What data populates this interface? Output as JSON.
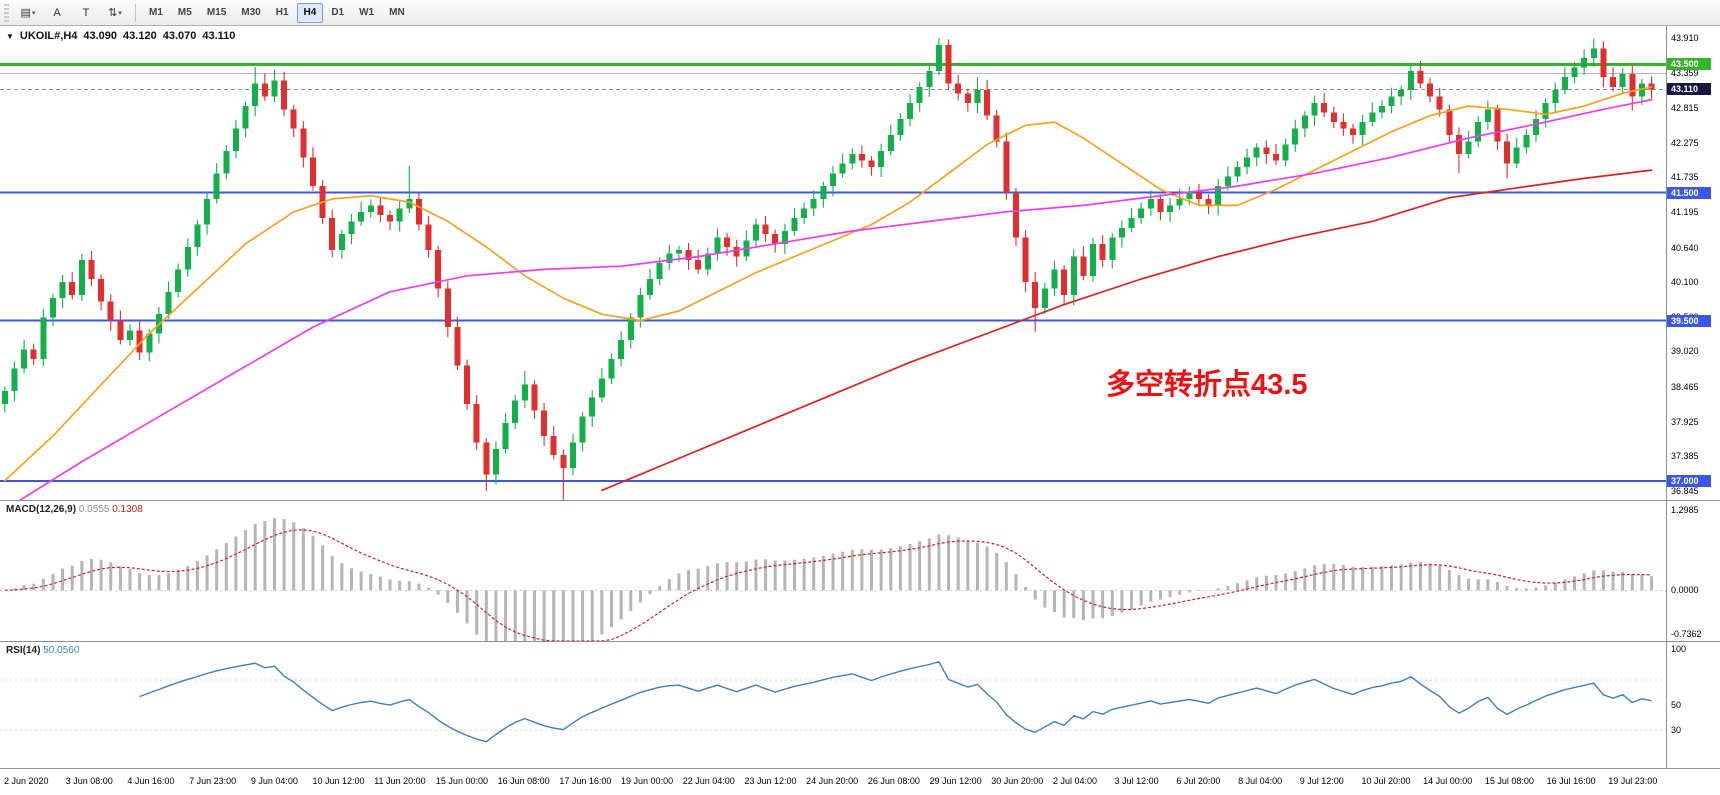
{
  "toolbar": {
    "icons": [
      {
        "name": "chart-objects-icon",
        "glyph": "▤",
        "caret": true
      },
      {
        "name": "text-annotation-icon",
        "glyph": "A",
        "caret": false
      },
      {
        "name": "text-label-icon",
        "glyph": "T",
        "caret": false
      },
      {
        "name": "scale-arrows-icon",
        "glyph": "⇅",
        "caret": true
      }
    ],
    "timeframes": [
      {
        "label": "M1",
        "active": false
      },
      {
        "label": "M5",
        "active": false
      },
      {
        "label": "M15",
        "active": false
      },
      {
        "label": "M30",
        "active": false
      },
      {
        "label": "H1",
        "active": false
      },
      {
        "label": "H4",
        "active": true
      },
      {
        "label": "D1",
        "active": false
      },
      {
        "label": "W1",
        "active": false
      },
      {
        "label": "MN",
        "active": false
      }
    ]
  },
  "chart_header": {
    "collapse_icon": "▼",
    "symbol": "UKOIL#,H4",
    "open": "43.090",
    "high": "43.120",
    "low": "43.070",
    "close": "43.110"
  },
  "macd_panel": {
    "label": "MACD(12,26,9)",
    "value_main": "0.0555",
    "value_signal": "0.1308",
    "axis": [
      "1.2985",
      "0.0000",
      "-0.7362"
    ]
  },
  "rsi_panel": {
    "label": "RSI(14)",
    "value": "50.0560",
    "axis": [
      "100",
      "50",
      "30"
    ]
  },
  "style": {
    "up_color": "#12b04a",
    "down_color": "#e12e2e",
    "ma_fast_color": "#f5a31a",
    "ma_mid_color": "#ee3cee",
    "ma_slow_color": "#e02020",
    "hline_blue": "#3a57e8",
    "hline_green": "#35b52b",
    "badge_dark": "#17173f",
    "macd_hist_color": "#b5b5b5",
    "macd_signal_color": "#d42020",
    "rsi_line_color": "#3f7fc1",
    "annotation_color": "#ee1111"
  },
  "chart_data": {
    "type": "candlestick",
    "symbol": "UKOIL#",
    "timeframe": "H4",
    "current": {
      "open": 43.09,
      "high": 43.12,
      "low": 43.07,
      "close": 43.11
    },
    "price_min": 36.7,
    "price_max": 44.1,
    "price_axis_ticks": [
      "43.910",
      "43.359",
      "42.815",
      "42.275",
      "41.735",
      "41.195",
      "40.640",
      "40.100",
      "39.560",
      "39.020",
      "38.465",
      "37.925",
      "37.385",
      "36.845"
    ],
    "price_badges": [
      {
        "text": "43.500",
        "value": 43.5,
        "type": "green"
      },
      {
        "text": "43.110",
        "value": 43.11,
        "type": "dark"
      },
      {
        "text": "41.500",
        "value": 41.5,
        "type": "blue"
      },
      {
        "text": "39.500",
        "value": 39.5,
        "type": "blue"
      },
      {
        "text": "37.000",
        "value": 37.0,
        "type": "blue"
      }
    ],
    "h_lines": [
      {
        "value": 43.5,
        "color_key": "hline_green",
        "width": 3,
        "dash": ""
      },
      {
        "value": 43.359,
        "color_key": "gray_line",
        "width": 1,
        "dash": ""
      },
      {
        "value": 43.11,
        "color_key": "gray_dash",
        "width": 1,
        "dash": "4,3"
      },
      {
        "value": 41.5,
        "color_key": "hline_blue",
        "width": 2,
        "dash": ""
      },
      {
        "value": 39.5,
        "color_key": "hline_blue",
        "width": 2,
        "dash": ""
      },
      {
        "value": 37.0,
        "color_key": "hline_blue",
        "width": 2,
        "dash": ""
      }
    ],
    "annotation": {
      "text": "多空转折点43.5",
      "x_frac": 0.664,
      "price": 38.35,
      "font_size": 29
    },
    "first_open": 38.2,
    "closes": [
      38.4,
      38.75,
      39.05,
      38.9,
      39.55,
      39.85,
      40.1,
      39.9,
      40.45,
      40.15,
      39.8,
      39.5,
      39.2,
      39.35,
      39.0,
      39.3,
      39.6,
      39.95,
      40.3,
      40.65,
      41.0,
      41.4,
      41.8,
      42.15,
      42.5,
      42.85,
      43.2,
      43.0,
      43.25,
      42.8,
      42.5,
      42.05,
      41.6,
      41.1,
      40.6,
      40.85,
      41.05,
      41.2,
      41.3,
      41.15,
      41.05,
      41.25,
      41.4,
      41.0,
      40.6,
      40.0,
      39.4,
      38.8,
      38.2,
      37.6,
      37.1,
      37.5,
      37.9,
      38.25,
      38.5,
      38.1,
      37.7,
      37.4,
      37.2,
      37.6,
      38.0,
      38.3,
      38.6,
      38.9,
      39.2,
      39.55,
      39.9,
      40.15,
      40.4,
      40.55,
      40.6,
      40.45,
      40.3,
      40.55,
      40.8,
      40.65,
      40.5,
      40.75,
      41.0,
      40.85,
      40.7,
      40.9,
      41.1,
      41.25,
      41.4,
      41.6,
      41.8,
      41.95,
      42.1,
      42.0,
      41.9,
      42.15,
      42.4,
      42.65,
      42.9,
      43.15,
      43.4,
      43.8,
      43.2,
      43.05,
      42.9,
      43.1,
      42.7,
      42.3,
      41.5,
      40.8,
      40.1,
      39.7,
      40.0,
      40.3,
      39.9,
      40.5,
      40.2,
      40.7,
      40.45,
      40.8,
      40.95,
      41.1,
      41.25,
      41.4,
      41.2,
      41.3,
      41.4,
      41.5,
      41.4,
      41.3,
      41.6,
      41.75,
      41.9,
      42.05,
      42.2,
      42.1,
      42.0,
      42.25,
      42.5,
      42.7,
      42.9,
      42.75,
      42.6,
      42.5,
      42.4,
      42.6,
      42.75,
      42.85,
      43.0,
      43.1,
      43.4,
      43.2,
      43.0,
      42.8,
      42.4,
      42.1,
      42.3,
      42.6,
      42.8,
      42.3,
      41.95,
      42.2,
      42.4,
      42.65,
      42.9,
      43.1,
      43.3,
      43.45,
      43.6,
      43.75,
      43.3,
      43.15,
      43.35,
      43.0,
      43.2,
      43.11
    ],
    "wick_overrides": {
      "26": {
        "h": 43.46
      },
      "28": {
        "h": 43.42
      },
      "42": {
        "h": 41.92
      },
      "50": {
        "l": 36.84
      },
      "54": {
        "h": 38.72
      },
      "58": {
        "l": 36.62
      },
      "97": {
        "h": 43.91
      },
      "101": {
        "h": 43.3
      },
      "107": {
        "l": 39.32
      },
      "146": {
        "h": 43.5
      },
      "151": {
        "l": 41.8
      },
      "156": {
        "l": 41.72
      },
      "165": {
        "h": 43.9
      },
      "169": {
        "l": 42.78
      }
    },
    "moving_averages": [
      {
        "name": "ma-fast-orange",
        "color_key": "ma_fast_color",
        "points": [
          [
            0,
            37.0
          ],
          [
            5,
            37.7
          ],
          [
            10,
            38.5
          ],
          [
            15,
            39.3
          ],
          [
            20,
            40.0
          ],
          [
            25,
            40.7
          ],
          [
            30,
            41.2
          ],
          [
            34,
            41.4
          ],
          [
            38,
            41.45
          ],
          [
            42,
            41.35
          ],
          [
            46,
            41.05
          ],
          [
            50,
            40.65
          ],
          [
            54,
            40.2
          ],
          [
            58,
            39.85
          ],
          [
            62,
            39.6
          ],
          [
            66,
            39.5
          ],
          [
            70,
            39.65
          ],
          [
            74,
            39.95
          ],
          [
            78,
            40.25
          ],
          [
            82,
            40.5
          ],
          [
            86,
            40.75
          ],
          [
            90,
            41.0
          ],
          [
            94,
            41.35
          ],
          [
            98,
            41.8
          ],
          [
            102,
            42.25
          ],
          [
            106,
            42.55
          ],
          [
            109,
            42.6
          ],
          [
            112,
            42.35
          ],
          [
            116,
            41.95
          ],
          [
            120,
            41.55
          ],
          [
            124,
            41.3
          ],
          [
            128,
            41.3
          ],
          [
            132,
            41.55
          ],
          [
            136,
            41.85
          ],
          [
            140,
            42.15
          ],
          [
            144,
            42.45
          ],
          [
            148,
            42.7
          ],
          [
            152,
            42.85
          ],
          [
            156,
            42.8
          ],
          [
            160,
            42.72
          ],
          [
            164,
            42.85
          ],
          [
            168,
            43.05
          ],
          [
            171,
            43.15
          ]
        ]
      },
      {
        "name": "ma-mid-magenta",
        "color_key": "ma_mid_color",
        "points": [
          [
            0,
            36.55
          ],
          [
            8,
            37.3
          ],
          [
            16,
            38.0
          ],
          [
            24,
            38.7
          ],
          [
            32,
            39.4
          ],
          [
            40,
            39.95
          ],
          [
            48,
            40.2
          ],
          [
            56,
            40.3
          ],
          [
            64,
            40.35
          ],
          [
            72,
            40.5
          ],
          [
            80,
            40.7
          ],
          [
            88,
            40.9
          ],
          [
            96,
            41.05
          ],
          [
            104,
            41.2
          ],
          [
            112,
            41.3
          ],
          [
            120,
            41.45
          ],
          [
            128,
            41.6
          ],
          [
            136,
            41.8
          ],
          [
            144,
            42.05
          ],
          [
            152,
            42.35
          ],
          [
            160,
            42.6
          ],
          [
            166,
            42.8
          ],
          [
            171,
            42.95
          ]
        ]
      },
      {
        "name": "ma-slow-red",
        "color_key": "ma_slow_color",
        "points": [
          [
            62,
            36.85
          ],
          [
            70,
            37.35
          ],
          [
            78,
            37.85
          ],
          [
            86,
            38.35
          ],
          [
            94,
            38.85
          ],
          [
            102,
            39.3
          ],
          [
            110,
            39.75
          ],
          [
            118,
            40.15
          ],
          [
            126,
            40.5
          ],
          [
            134,
            40.8
          ],
          [
            142,
            41.05
          ],
          [
            150,
            41.42
          ],
          [
            156,
            41.55
          ],
          [
            164,
            41.72
          ],
          [
            171,
            41.85
          ]
        ]
      }
    ],
    "indicators": {
      "macd": {
        "fast": 12,
        "slow": 26,
        "signal": 9,
        "scale_max": 1.2985,
        "scale_min": -0.7362,
        "current_main": 0.0555,
        "current_signal": 0.1308
      },
      "rsi": {
        "period": 14,
        "current": 50.056,
        "levels": [
          70,
          30
        ],
        "scale_min": 0,
        "scale_max": 100
      }
    },
    "x_labels": [
      "2 Jun 2020",
      "3 Jun 08:00",
      "4 Jun 16:00",
      "7 Jun 23:00",
      "9 Jun 04:00",
      "10 Jun 12:00",
      "11 Jun 20:00",
      "15 Jun 00:00",
      "16 Jun 08:00",
      "17 Jun 16:00",
      "19 Jun 00:00",
      "22 Jun 04:00",
      "23 Jun 12:00",
      "24 Jun 20:00",
      "26 Jun 08:00",
      "29 Jun 12:00",
      "30 Jun 20:00",
      "2 Jul 04:00",
      "3 Jul 12:00",
      "6 Jul 20:00",
      "8 Jul 04:00",
      "9 Jul 12:00",
      "10 Jul 20:00",
      "14 Jul 00:00",
      "15 Jul 08:00",
      "16 Jul 16:00",
      "19 Jul 23:00"
    ]
  }
}
